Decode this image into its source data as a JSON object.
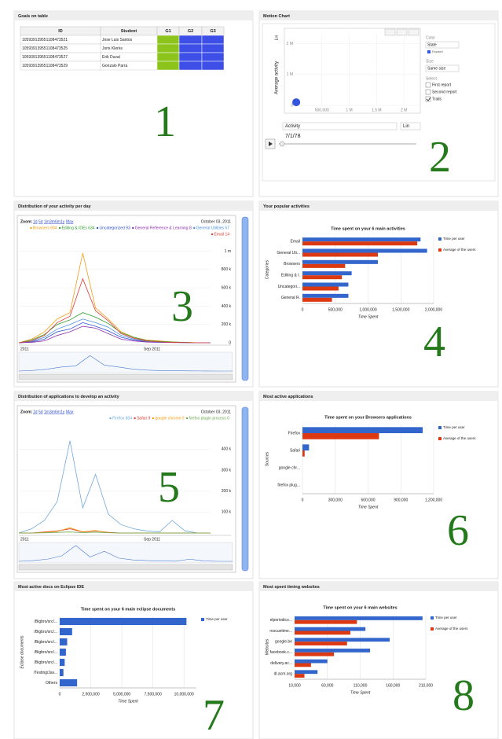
{
  "panels": [
    {
      "title": "Goals on table",
      "number": "1",
      "table": {
        "columns": [
          "ID",
          "Student",
          "G1",
          "G2",
          "G3"
        ],
        "rows": [
          [
            "105939139551108473521",
            "Jose Luis Santos"
          ],
          [
            "105939139551108473525",
            "Joris Klerks"
          ],
          [
            "105939139551108473527",
            "Erik Duval"
          ],
          [
            "105939139551108473529",
            "Gonzalo Parra"
          ]
        ],
        "goal_colors": [
          "#8cc41c",
          "#3d4fe6",
          "#3d4fe6"
        ]
      }
    },
    {
      "title": "Motion Chart",
      "number": "2",
      "motion": {
        "y_label": "Average activity",
        "y_scale": "Lin",
        "ylim": [
          0,
          2300000
        ],
        "yticks": [
          {
            "value": 0,
            "label": "0"
          },
          {
            "value": 1000000,
            "label": "1 M"
          },
          {
            "value": 2000000,
            "label": "2 M"
          }
        ],
        "xlim": [
          0,
          2300000
        ],
        "xticks": [
          {
            "value": 500000,
            "label": "500,000"
          },
          {
            "value": 1000000,
            "label": "1 M"
          },
          {
            "value": 1500000,
            "label": "1.5 M"
          },
          {
            "value": 2000000,
            "label": "2 M"
          }
        ],
        "point": {
          "x": 30000,
          "y": 100000
        },
        "point_color": "#3355dd",
        "color_label": "Color",
        "color_value": "State",
        "color_legend": "Expired",
        "size_label": "Size",
        "size_value": "Same size",
        "select_label": "Select",
        "options": [
          "First report",
          "Second report",
          "Trails"
        ],
        "x_select": "Activity",
        "x_scale": "Lin",
        "date": "7/1/78"
      }
    },
    {
      "title": "Distribution of your activity per day",
      "number": "3",
      "timeline": {
        "zoom_label": "Zoom:",
        "zoom_options": [
          "1d",
          "5d",
          "1m",
          "3m",
          "6m",
          "1y",
          "Max"
        ],
        "date": "October 03, 2011",
        "ylim": [
          0,
          1100000
        ],
        "yticks": [
          0,
          {
            "value": 200000,
            "label": "200 k"
          },
          {
            "value": 400000,
            "label": "400 k"
          },
          {
            "value": 600000,
            "label": "600 k"
          },
          {
            "value": 800000,
            "label": "800 k"
          },
          {
            "value": 1000000,
            "label": "1 m"
          }
        ],
        "x_labels": [
          "2011",
          "Sep 2011"
        ],
        "series": [
          {
            "name": "Browsers 604",
            "color": "#f39c12",
            "values": [
              0,
              40000,
              120000,
              260000,
              330000,
              980000,
              380000,
              260000,
              120000,
              60000,
              30000,
              20000,
              10000,
              5000,
              0,
              0
            ]
          },
          {
            "name": "Editing & IDEs 634",
            "color": "#2e9e2e",
            "values": [
              0,
              30000,
              90000,
              200000,
              250000,
              330000,
              280000,
              210000,
              110000,
              60000,
              25000,
              15000,
              8000,
              4000,
              0,
              0
            ]
          },
          {
            "name": "Uncategorized 93",
            "color": "#3050d0",
            "values": [
              0,
              10000,
              40000,
              120000,
              150000,
              220000,
              180000,
              130000,
              60000,
              30000,
              10000,
              5000,
              3000,
              2000,
              0,
              0
            ]
          },
          {
            "name": "General Reference & Learning 8",
            "color": "#8e2fb0",
            "values": [
              0,
              5000,
              20000,
              80000,
              120000,
              180000,
              160000,
              100000,
              40000,
              20000,
              8000,
              4000,
              2000,
              1000,
              0,
              0
            ]
          },
          {
            "name": "General Utilities 57",
            "color": "#4a90e2",
            "values": [
              0,
              15000,
              60000,
              150000,
              200000,
              260000,
              220000,
              170000,
              80000,
              40000,
              15000,
              8000,
              4000,
              2000,
              0,
              0
            ]
          },
          {
            "name": "Email 14",
            "color": "#e03a2f",
            "values": [
              0,
              20000,
              80000,
              220000,
              290000,
              700000,
              350000,
              240000,
              100000,
              50000,
              20000,
              10000,
              5000,
              2000,
              0,
              0
            ]
          }
        ]
      }
    },
    {
      "title": "Your popular activities",
      "number": "4",
      "bar_chart": {
        "chart_title": "Time spent on your 6 main activities",
        "x_label": "Time Spent",
        "y_label": "Categories",
        "categories": [
          "Email",
          "General Uti...",
          "Browsers",
          "Editing & I.",
          "Uncategori...",
          "General R."
        ],
        "series": [
          {
            "name": "Time per user",
            "color": "#3366cc",
            "values": [
              1800000,
              1900000,
              1150000,
              750000,
              700000,
              700000
            ]
          },
          {
            "name": "Average of the users",
            "color": "#dc3912",
            "values": [
              1750000,
              1150000,
              650000,
              600000,
              550000,
              450000
            ]
          }
        ],
        "xlim": [
          0,
          2000000
        ],
        "xticks": [
          0,
          {
            "value": 500000,
            "label": "500,000"
          },
          {
            "value": 1000000,
            "label": "1,000,000"
          },
          {
            "value": 1500000,
            "label": "1,500,000"
          },
          {
            "value": 2000000,
            "label": "2,000,000"
          }
        ]
      }
    },
    {
      "title": "Distribution of applications to develop an activity",
      "number": "5",
      "timeline": {
        "zoom_label": "Zoom:",
        "zoom_options": [
          "1d",
          "5d",
          "1m",
          "3m",
          "6m",
          "1y",
          "Max"
        ],
        "date": "October 03, 2011",
        "ylim": [
          0,
          480000
        ],
        "yticks": [
          {
            "value": 100000,
            "label": "100 k"
          },
          {
            "value": 200000,
            "label": "200 k"
          },
          {
            "value": 300000,
            "label": "300 k"
          },
          {
            "value": 400000,
            "label": "400 k"
          }
        ],
        "x_labels": [
          "2011",
          "Sep 2011"
        ],
        "series": [
          {
            "name": "Firefox 604",
            "color": "#6fa8dc",
            "values": [
              0,
              20000,
              60000,
              150000,
              440000,
              120000,
              280000,
              90000,
              40000,
              20000,
              10000,
              5000,
              60000,
              10000,
              0,
              0
            ]
          },
          {
            "name": "Safari 9",
            "color": "#e03a2f",
            "values": [
              0,
              0,
              5000,
              10000,
              20000,
              5000,
              10000,
              3000,
              0,
              0,
              0,
              0,
              0,
              0,
              0,
              0
            ]
          },
          {
            "name": "google chrome 0",
            "color": "#f39c12",
            "values": [
              0,
              0,
              3000,
              8000,
              25000,
              6000,
              12000,
              2000,
              0,
              0,
              0,
              0,
              0,
              0,
              0,
              0
            ]
          },
          {
            "name": "firefox plugin process 0",
            "color": "#6aa84f",
            "values": [
              0,
              0,
              1000,
              3000,
              5000,
              2000,
              4000,
              1000,
              0,
              0,
              0,
              0,
              0,
              0,
              0,
              0
            ]
          }
        ]
      }
    },
    {
      "title": "Most active applications",
      "number": "6",
      "bar_chart": {
        "chart_title": "Time spent on your Browsers applications",
        "x_label": "Time Spent",
        "y_label": "Sources",
        "categories": [
          "Firefox",
          "Safari",
          "google chr...",
          "firefox plug..."
        ],
        "series": [
          {
            "name": "Time per user",
            "color": "#3366cc",
            "values": [
              1100000,
              60000,
              0,
              0
            ]
          },
          {
            "name": "Average of the users",
            "color": "#dc3912",
            "values": [
              700000,
              20000,
              0,
              0
            ]
          }
        ],
        "xlim": [
          0,
          1200000
        ],
        "xticks": [
          0,
          {
            "value": 300000,
            "label": "300,000"
          },
          {
            "value": 600000,
            "label": "600,000"
          },
          {
            "value": 900000,
            "label": "900,000"
          },
          {
            "value": 1200000,
            "label": "1,200,000"
          }
        ]
      }
    },
    {
      "title": "Most active docs on Eclipse IDE",
      "number": "7",
      "bar_chart": {
        "chart_title": "Time spent on your 6 main eclipse documents",
        "x_label": "Time Spent",
        "y_label": "Eclipse documents",
        "categories": [
          "/Bigbro/src/...",
          "/Bigbro/src/...",
          "/Bigbro/src/...",
          "/Bigbro/src/...",
          "/Bigbro/src/...",
          "/Testing/Jav...",
          "Others"
        ],
        "series": [
          {
            "name": "Time per user",
            "color": "#3366cc",
            "values": [
              10200000,
              1000000,
              600000,
              500000,
              400000,
              300000,
              1400000
            ]
          }
        ],
        "xlim": [
          0,
          11000000
        ],
        "xticks": [
          0,
          {
            "value": 2500000,
            "label": "2,500,000"
          },
          {
            "value": 5000000,
            "label": "5,000,000"
          },
          {
            "value": 7500000,
            "label": "7,500,000"
          },
          {
            "value": 10000000,
            "label": "10,000,000"
          }
        ]
      }
    },
    {
      "title": "Most spent timing websites",
      "number": "8",
      "bar_chart": {
        "chart_title": "Time spent on your 6 main websites",
        "x_label": "Time Spent",
        "y_label": "Websites",
        "categories": [
          "elperiodico...",
          "rescuetime...",
          "google.be",
          "facebook.c...",
          "delivery.ac...",
          "dl.acm.org"
        ],
        "series": [
          {
            "name": "Time per user",
            "color": "#3366cc",
            "values": [
              205000,
              118000,
              155000,
              125000,
              60000,
              45000
            ]
          },
          {
            "name": "Average of the users",
            "color": "#dc3912",
            "values": [
              105000,
              95000,
              90000,
              70000,
              35000,
              25000
            ]
          }
        ],
        "xlim": [
          10000,
          210000
        ],
        "xticks": [
          {
            "value": 10000,
            "label": "10,000"
          },
          {
            "value": 60000,
            "label": "60,000"
          },
          {
            "value": 110000,
            "label": "110,000"
          },
          {
            "value": 160000,
            "label": "160,000"
          },
          {
            "value": 210000,
            "label": "210,000"
          }
        ]
      }
    }
  ]
}
